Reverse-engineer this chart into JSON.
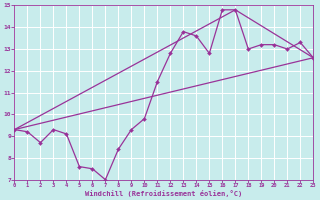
{
  "background_color": "#c8ecec",
  "grid_color": "#b0d8d8",
  "line_color": "#993399",
  "xlabel": "Windchill (Refroidissement éolien,°C)",
  "ylim": [
    7,
    15
  ],
  "xlim": [
    0,
    23
  ],
  "yticks": [
    7,
    8,
    9,
    10,
    11,
    12,
    13,
    14,
    15
  ],
  "xticks": [
    0,
    1,
    2,
    3,
    4,
    5,
    6,
    7,
    8,
    9,
    10,
    11,
    12,
    13,
    14,
    15,
    16,
    17,
    18,
    19,
    20,
    21,
    22,
    23
  ],
  "line1_x": [
    0,
    1,
    2,
    3,
    4,
    5,
    6,
    7,
    8,
    9,
    10,
    11,
    12,
    13,
    14,
    15,
    16,
    17,
    18,
    19,
    20,
    21,
    22,
    23
  ],
  "line1_y": [
    9.3,
    9.2,
    8.7,
    9.3,
    9.1,
    7.6,
    7.5,
    7.0,
    8.4,
    9.3,
    9.8,
    11.5,
    12.8,
    13.8,
    13.6,
    12.8,
    14.8,
    14.8,
    13.0,
    13.2,
    13.2,
    13.0,
    13.3,
    12.6
  ],
  "line2_x": [
    0,
    23
  ],
  "line2_y": [
    9.3,
    12.6
  ],
  "line3_x": [
    0,
    17,
    23
  ],
  "line3_y": [
    9.3,
    14.8,
    12.6
  ]
}
